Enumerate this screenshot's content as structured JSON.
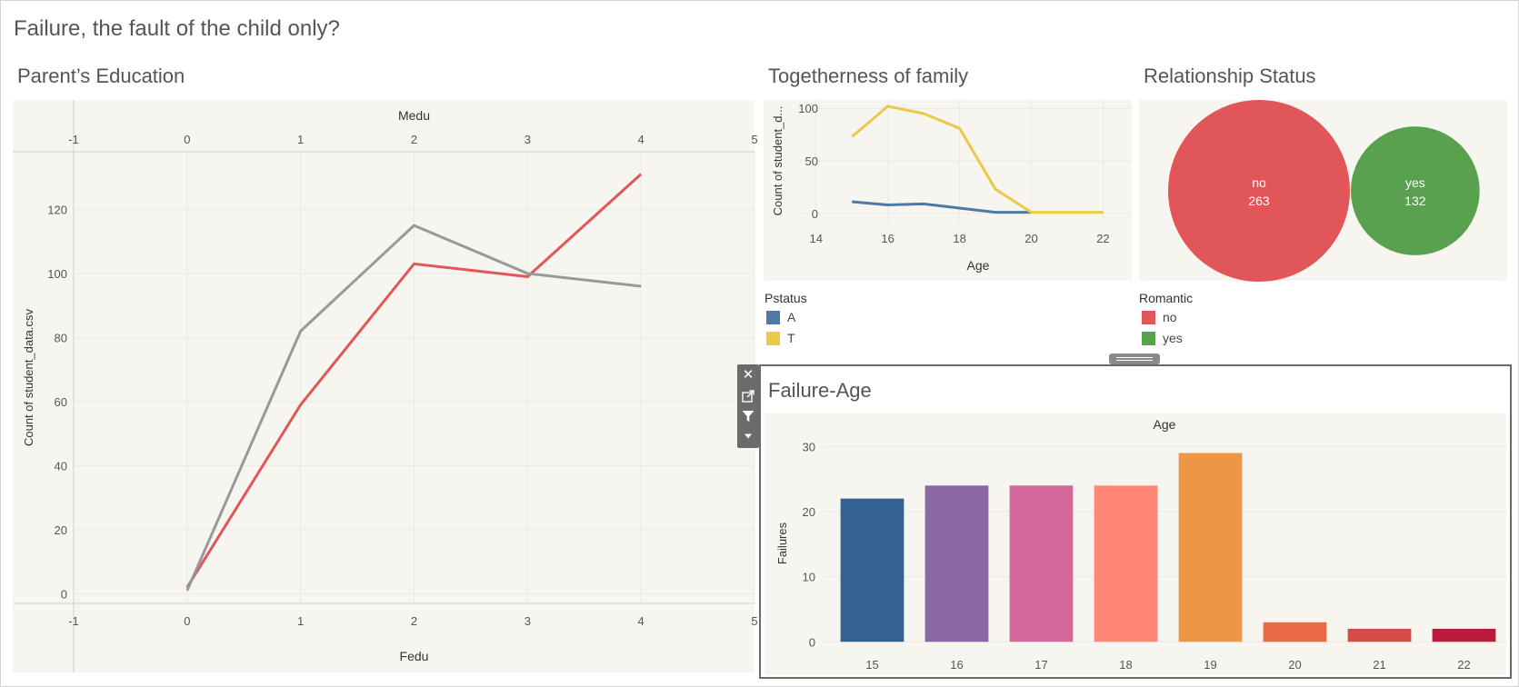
{
  "dashboard_title": "Failure, the fault of the child only?",
  "sheets": {
    "parents": {
      "title": "Parent’s Education"
    },
    "family": {
      "title": "Togetherness of family"
    },
    "relationship": {
      "title": "Relationship Status"
    },
    "failure": {
      "title": "Failure-Age"
    }
  },
  "legends": {
    "pstatus": {
      "title": "Pstatus",
      "items": [
        {
          "label": "A",
          "color": "#4e79a7"
        },
        {
          "label": "T",
          "color": "#edc948"
        }
      ]
    },
    "romantic": {
      "title": "Romantic",
      "items": [
        {
          "label": "no",
          "color": "#e15759"
        },
        {
          "label": "yes",
          "color": "#59a14f"
        }
      ]
    }
  },
  "toolbar": {
    "icons": [
      "close-icon",
      "popout-icon",
      "filter-icon",
      "more-options-icon"
    ]
  },
  "chart_data": [
    {
      "id": "parents",
      "type": "line",
      "top_axis_label": "Medu",
      "xlabel": "Fedu",
      "ylabel": "Count of student_data.csv",
      "xlim": [
        -1,
        5
      ],
      "ylim": [
        -3,
        138
      ],
      "xticks": [
        -1,
        0,
        1,
        2,
        3,
        4,
        5
      ],
      "yticks": [
        0,
        20,
        40,
        60,
        80,
        100,
        120
      ],
      "series": [
        {
          "color": "#e15759",
          "x": [
            0,
            1,
            2,
            3,
            4
          ],
          "y": [
            2,
            59,
            103,
            99,
            131
          ]
        },
        {
          "color": "#999999",
          "x": [
            0,
            1,
            2,
            3,
            4
          ],
          "y": [
            1,
            82,
            115,
            100,
            96
          ]
        }
      ],
      "grid": true
    },
    {
      "id": "family",
      "type": "line",
      "xlabel": "Age",
      "ylabel": "Count of student_d...",
      "xlim": [
        13.5,
        22.8
      ],
      "ylim": [
        -8,
        108
      ],
      "xticks": [
        14,
        16,
        18,
        20,
        22
      ],
      "yticks": [
        0,
        50,
        100
      ],
      "series": [
        {
          "name": "A",
          "color": "#4e79a7",
          "x": [
            15,
            16,
            17,
            18,
            19,
            20
          ],
          "y": [
            11,
            8,
            9,
            5,
            1,
            1
          ]
        },
        {
          "name": "T",
          "color": "#edc948",
          "x": [
            15,
            16,
            17,
            18,
            19,
            20,
            21,
            22
          ],
          "y": [
            73,
            102,
            95,
            81,
            23,
            1,
            1,
            1
          ]
        }
      ],
      "grid": true
    },
    {
      "id": "relationship",
      "type": "bubble",
      "series": [
        {
          "name": "no",
          "value": 263,
          "color": "#e15759"
        },
        {
          "name": "yes",
          "value": 132,
          "color": "#59a14f"
        }
      ]
    },
    {
      "id": "failure",
      "type": "bar",
      "top_axis_label": "Age",
      "ylabel": "Failures",
      "categories": [
        "15",
        "16",
        "17",
        "18",
        "19",
        "20",
        "21",
        "22"
      ],
      "values": [
        22,
        24,
        24,
        24,
        29,
        3,
        2,
        2
      ],
      "colors": [
        "#346190",
        "#8b67a3",
        "#d5699b",
        "#ff8577",
        "#ed9746",
        "#ea6a47",
        "#d34a47",
        "#bb1a3f"
      ],
      "ylim": [
        -1.5,
        32
      ],
      "yticks": [
        0,
        10,
        20,
        30
      ],
      "grid": true
    }
  ]
}
